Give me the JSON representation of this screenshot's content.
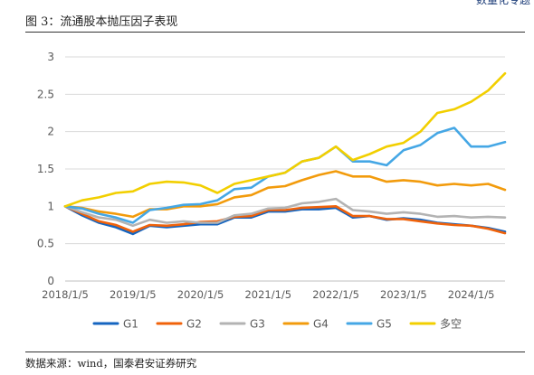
{
  "header": {
    "mark_text": "数量化专题"
  },
  "figure": {
    "title": "图 3：流通股本抛压因子表现",
    "source": "数据来源：wind，国泰君安证券研究"
  },
  "colors": {
    "G1": "#1565c0",
    "G2": "#f0620a",
    "G3": "#b3b3b3",
    "G4": "#f29b0c",
    "G5": "#45a7e5",
    "多空": "#f2cf00",
    "grid": "#d9d9d9",
    "axis": "#bfbfbf"
  },
  "chart_data": {
    "type": "line",
    "title": "",
    "xlabel": "",
    "ylabel": "",
    "x_ticks": [
      "2018/1/5",
      "2019/1/5",
      "2020/1/5",
      "2021/1/5",
      "2022/1/5",
      "2023/1/5",
      "2024/1/5"
    ],
    "y_ticks": [
      "0",
      "0.5",
      "1",
      "1.5",
      "2",
      "2.5",
      "3"
    ],
    "ylim": [
      0,
      3
    ],
    "grid": "horizontal",
    "legend_position": "bottom",
    "x": [
      "2018/1",
      "2018/4",
      "2018/7",
      "2018/10",
      "2019/1",
      "2019/4",
      "2019/7",
      "2019/10",
      "2020/1",
      "2020/4",
      "2020/7",
      "2020/10",
      "2021/1",
      "2021/4",
      "2021/7",
      "2021/10",
      "2022/1",
      "2022/4",
      "2022/7",
      "2022/10",
      "2023/1",
      "2023/4",
      "2023/7",
      "2023/10",
      "2024/1",
      "2024/4",
      "2024/7"
    ],
    "series": [
      {
        "name": "G1",
        "values": [
          1.0,
          0.88,
          0.78,
          0.72,
          0.63,
          0.74,
          0.72,
          0.74,
          0.76,
          0.76,
          0.85,
          0.85,
          0.93,
          0.93,
          0.96,
          0.96,
          0.98,
          0.85,
          0.87,
          0.82,
          0.84,
          0.82,
          0.78,
          0.76,
          0.74,
          0.71,
          0.66
        ]
      },
      {
        "name": "G2",
        "values": [
          1.0,
          0.9,
          0.8,
          0.75,
          0.66,
          0.75,
          0.74,
          0.76,
          0.79,
          0.8,
          0.86,
          0.87,
          0.95,
          0.95,
          0.98,
          0.99,
          1.0,
          0.87,
          0.87,
          0.83,
          0.83,
          0.8,
          0.77,
          0.75,
          0.74,
          0.7,
          0.64
        ]
      },
      {
        "name": "G3",
        "values": [
          1.0,
          0.92,
          0.85,
          0.82,
          0.74,
          0.82,
          0.78,
          0.8,
          0.78,
          0.78,
          0.88,
          0.9,
          0.97,
          0.98,
          1.04,
          1.06,
          1.1,
          0.95,
          0.93,
          0.9,
          0.92,
          0.9,
          0.86,
          0.87,
          0.85,
          0.86,
          0.85
        ]
      },
      {
        "name": "G4",
        "values": [
          1.0,
          0.98,
          0.93,
          0.9,
          0.86,
          0.96,
          0.96,
          1.0,
          1.0,
          1.03,
          1.12,
          1.15,
          1.25,
          1.27,
          1.35,
          1.42,
          1.47,
          1.4,
          1.4,
          1.33,
          1.35,
          1.33,
          1.28,
          1.3,
          1.28,
          1.3,
          1.22
        ]
      },
      {
        "name": "G5",
        "values": [
          1.0,
          0.97,
          0.9,
          0.85,
          0.78,
          0.95,
          0.98,
          1.02,
          1.03,
          1.08,
          1.23,
          1.25,
          1.4,
          1.45,
          1.6,
          1.65,
          1.8,
          1.6,
          1.6,
          1.55,
          1.75,
          1.82,
          1.98,
          2.05,
          1.8,
          1.8,
          1.86
        ]
      },
      {
        "name": "多空",
        "values": [
          1.0,
          1.08,
          1.12,
          1.18,
          1.2,
          1.3,
          1.33,
          1.32,
          1.28,
          1.18,
          1.3,
          1.35,
          1.4,
          1.45,
          1.6,
          1.65,
          1.8,
          1.62,
          1.7,
          1.8,
          1.85,
          2.0,
          2.25,
          2.3,
          2.4,
          2.55,
          2.78
        ]
      }
    ]
  }
}
